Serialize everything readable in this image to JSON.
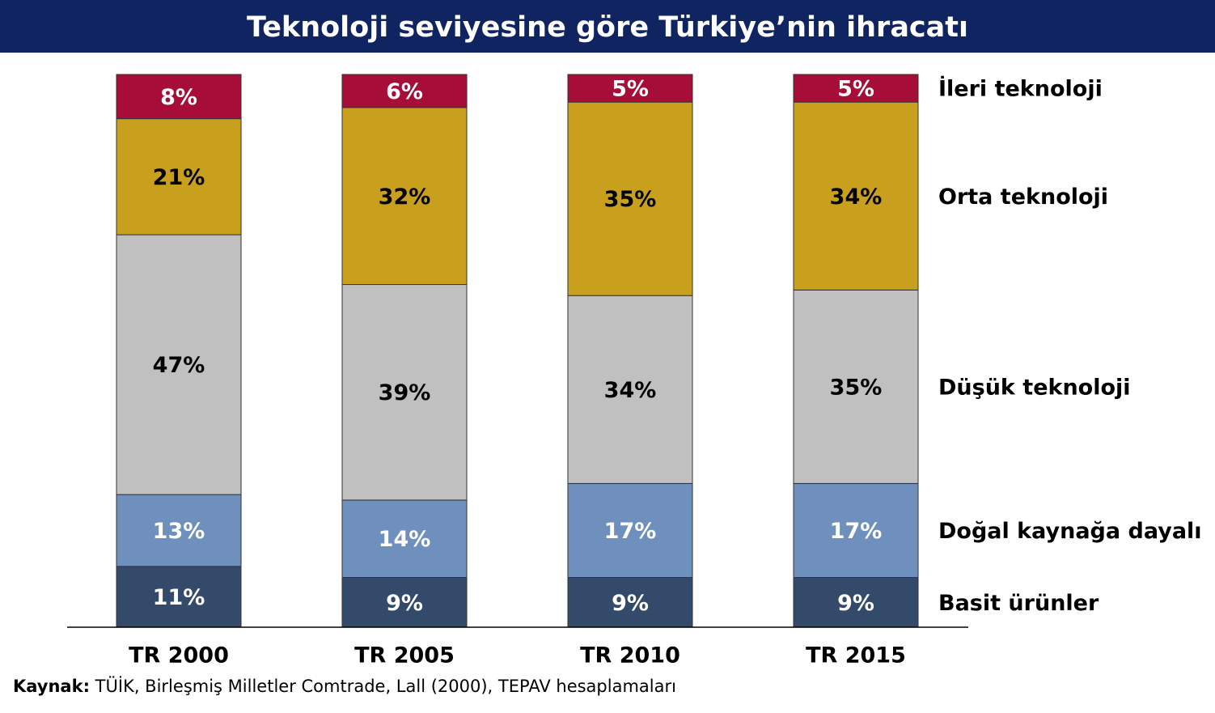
{
  "chart_data": {
    "type": "stacked-bar",
    "title": "Teknoloji seviyesine göre Türkiye’nin ihracatı",
    "categories": [
      "TR 2000",
      "TR 2005",
      "TR 2010",
      "TR 2015"
    ],
    "series": [
      {
        "name": "Basit ürünler",
        "color": "#344a6b",
        "label_color": "#ffffff",
        "values": [
          11,
          9,
          9,
          9
        ],
        "value_labels": [
          "11%",
          "9%",
          "9%",
          "9%"
        ]
      },
      {
        "name": "Doğal kaynağa dayalı",
        "color": "#6f8fbc",
        "label_color": "#ffffff",
        "values": [
          13,
          14,
          17,
          17
        ],
        "value_labels": [
          "13%",
          "14%",
          "17%",
          "17%"
        ]
      },
      {
        "name": "Düşük teknoloji",
        "color": "#c0c0c0",
        "label_color": "#000000",
        "values": [
          47,
          39,
          34,
          35
        ],
        "value_labels": [
          "47%",
          "39%",
          "34%",
          "35%"
        ]
      },
      {
        "name": "Orta teknoloji",
        "color": "#c8a01d",
        "label_color": "#000000",
        "values": [
          21,
          32,
          35,
          34
        ],
        "value_labels": [
          "21%",
          "32%",
          "35%",
          "34%"
        ]
      },
      {
        "name": "İleri teknoloji",
        "color": "#a60d37",
        "label_color": "#ffffff",
        "values": [
          8,
          6,
          5,
          5
        ],
        "value_labels": [
          "8%",
          "6%",
          "5%",
          "5%"
        ]
      }
    ],
    "legend": "right",
    "source": {
      "label": "Kaynak:",
      "text": "TÜİK, Birleşmiş Milletler Comtrade, Lall (2000), TEPAV hesaplamaları"
    }
  }
}
